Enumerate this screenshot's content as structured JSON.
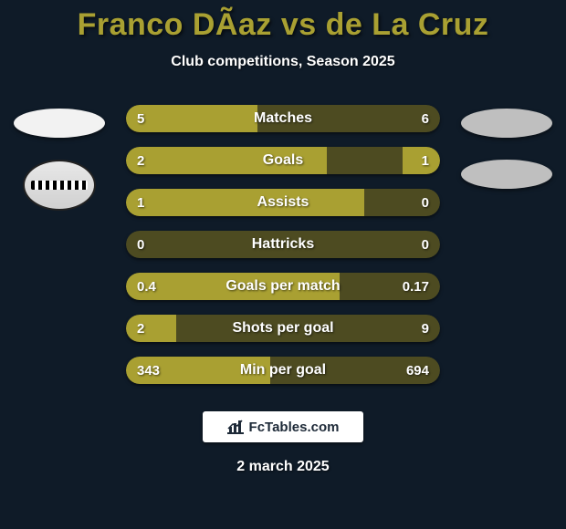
{
  "colors": {
    "page_bg": "#0f1b28",
    "text": "#ffffff",
    "title": "#a9a032",
    "bar_base": "#4d4b21",
    "bar_fill": "#a9a032",
    "brand_bg": "#ffffff",
    "brand_text": "#1e2a38",
    "player_oval_left": "#f2f2f2",
    "player_oval_right": "#bfbfbf"
  },
  "title": "Franco DÃ­az vs de La Cruz",
  "subtitle": "Club competitions, Season 2025",
  "footer_brand": "FcTables.com",
  "footer_date": "2 march 2025",
  "bars": [
    {
      "label": "Matches",
      "left_text": "5",
      "right_text": "6",
      "left_pct": 42,
      "right_pct": 0
    },
    {
      "label": "Goals",
      "left_text": "2",
      "right_text": "1",
      "left_pct": 64,
      "right_pct": 12
    },
    {
      "label": "Assists",
      "left_text": "1",
      "right_text": "0",
      "left_pct": 76,
      "right_pct": 0
    },
    {
      "label": "Hattricks",
      "left_text": "0",
      "right_text": "0",
      "left_pct": 0,
      "right_pct": 0
    },
    {
      "label": "Goals per match",
      "left_text": "0.4",
      "right_text": "0.17",
      "left_pct": 68,
      "right_pct": 0
    },
    {
      "label": "Shots per goal",
      "left_text": "2",
      "right_text": "9",
      "left_pct": 16,
      "right_pct": 0
    },
    {
      "label": "Min per goal",
      "left_text": "343",
      "right_text": "694",
      "left_pct": 46,
      "right_pct": 0
    }
  ]
}
